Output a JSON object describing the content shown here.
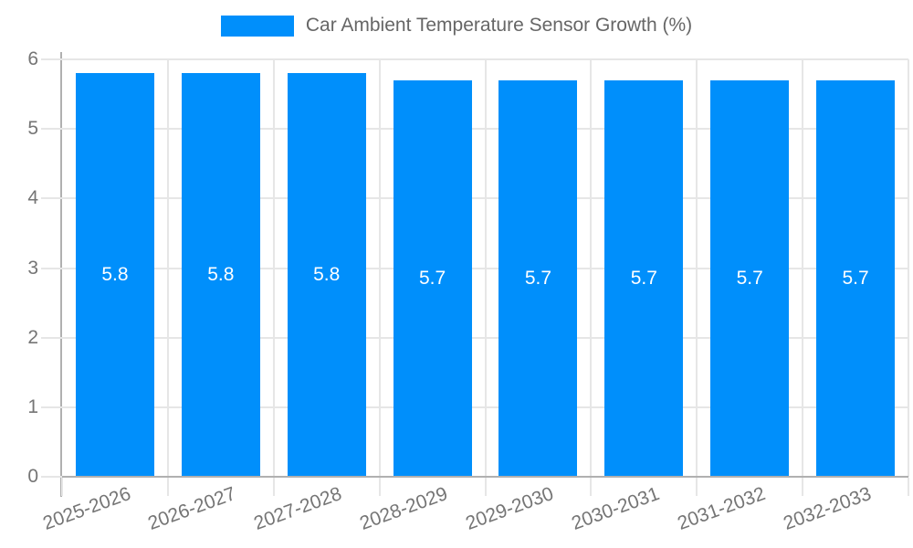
{
  "chart_data": {
    "type": "bar",
    "title": "Car Ambient Temperature Sensor Growth (%)",
    "legend_entries": [
      "Car Ambient Temperature Sensor Growth (%)"
    ],
    "legend_position": "top-center",
    "categories": [
      "2025-2026",
      "2026-2027",
      "2027-2028",
      "2028-2029",
      "2029-2030",
      "2030-2031",
      "2031-2032",
      "2032-2033"
    ],
    "values": [
      5.8,
      5.8,
      5.8,
      5.7,
      5.7,
      5.7,
      5.7,
      5.7
    ],
    "data_labels": [
      "5.8",
      "5.8",
      "5.8",
      "5.7",
      "5.7",
      "5.7",
      "5.7",
      "5.7"
    ],
    "xlabel": "",
    "ylabel": "",
    "ylim": [
      0,
      6
    ],
    "yticks": [
      "0",
      "1",
      "2",
      "3",
      "4",
      "5",
      "6"
    ],
    "grid": true,
    "x_label_rotation_deg": -20,
    "colors": {
      "bar": "#008FFB",
      "data_label": "#FFFFFF",
      "grid_line": "#E6E6E6",
      "axis_line": "#B0B0B0",
      "tick_label": "#757575",
      "legend_text": "#666666",
      "background": "#FFFFFF"
    }
  }
}
